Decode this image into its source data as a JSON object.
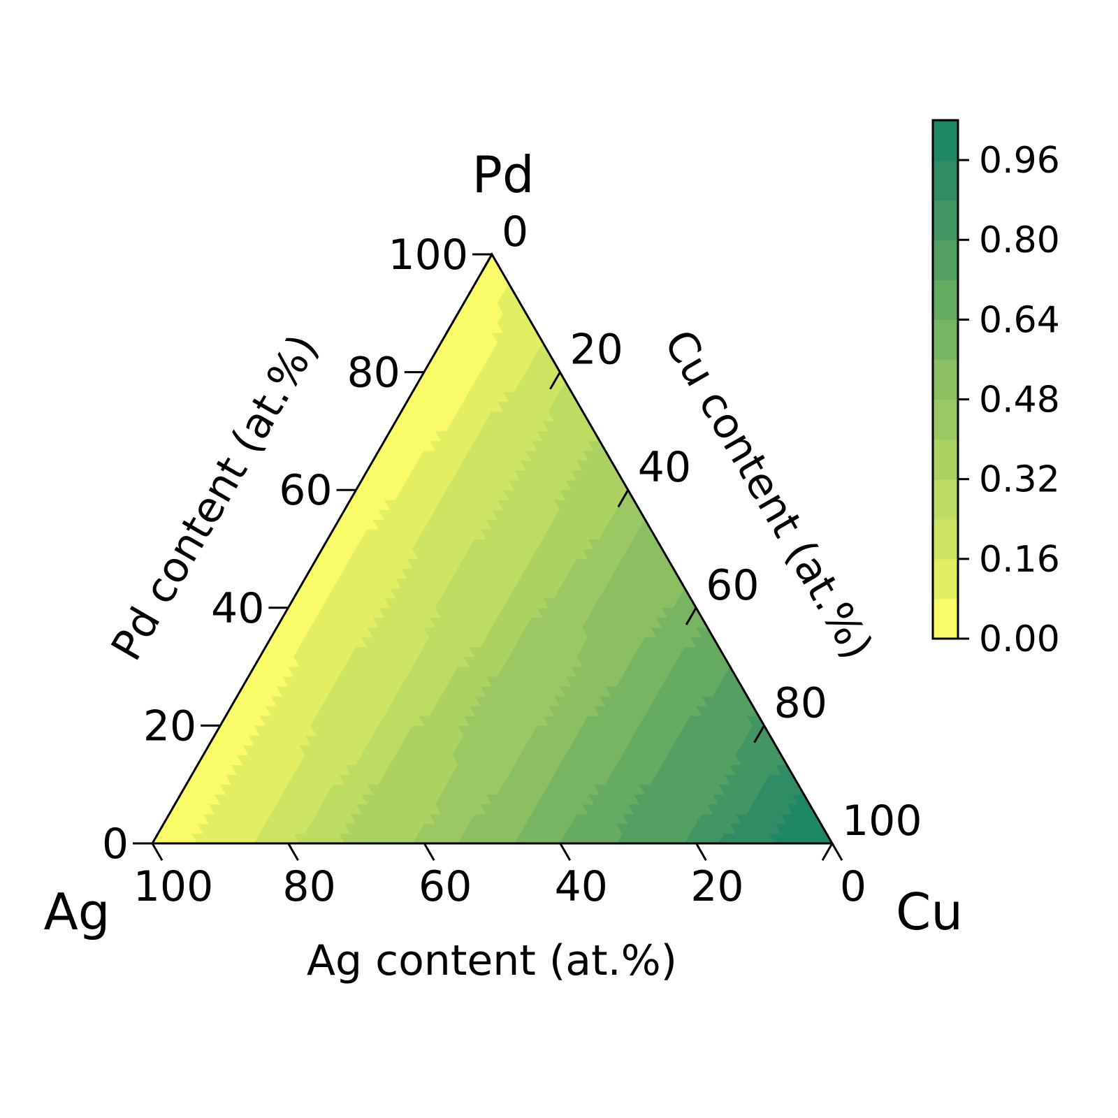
{
  "chart_data": {
    "type": "heatmap",
    "subtype": "ternary-contour",
    "vertices": {
      "top": "Pd",
      "left": "Ag",
      "right": "Cu"
    },
    "axes": {
      "bottom": {
        "label": "Ag content (at.%)",
        "ticks": [
          "100",
          "80",
          "60",
          "40",
          "20",
          "0"
        ]
      },
      "left": {
        "label": "Pd content (at.%)",
        "ticks": [
          "0",
          "20",
          "40",
          "60",
          "80",
          "100"
        ]
      },
      "right": {
        "label": "Cu content (at.%)",
        "ticks": [
          "0",
          "20",
          "40",
          "60",
          "80",
          "100"
        ]
      }
    },
    "colorbar": {
      "ticks": [
        "0.00",
        "0.16",
        "0.32",
        "0.48",
        "0.64",
        "0.80",
        "0.96"
      ],
      "range": [
        0,
        1.04
      ],
      "levels": 13,
      "colormap": [
        "#f9fb69",
        "#e2ef63",
        "#cde563",
        "#bcdc62",
        "#acd262",
        "#9bc862",
        "#8bbf62",
        "#78b562",
        "#66ab62",
        "#54a062",
        "#419664",
        "#2f8c65",
        "#1e8765",
        "#0a8064"
      ]
    },
    "field_model": "value increases with Cu content: roughly 0.9-0.98 near Cu corner, ~0.5 at equal Ag/Cu with low Pd, 0.0-0.1 near Pd and Ag corners",
    "grid": false
  }
}
